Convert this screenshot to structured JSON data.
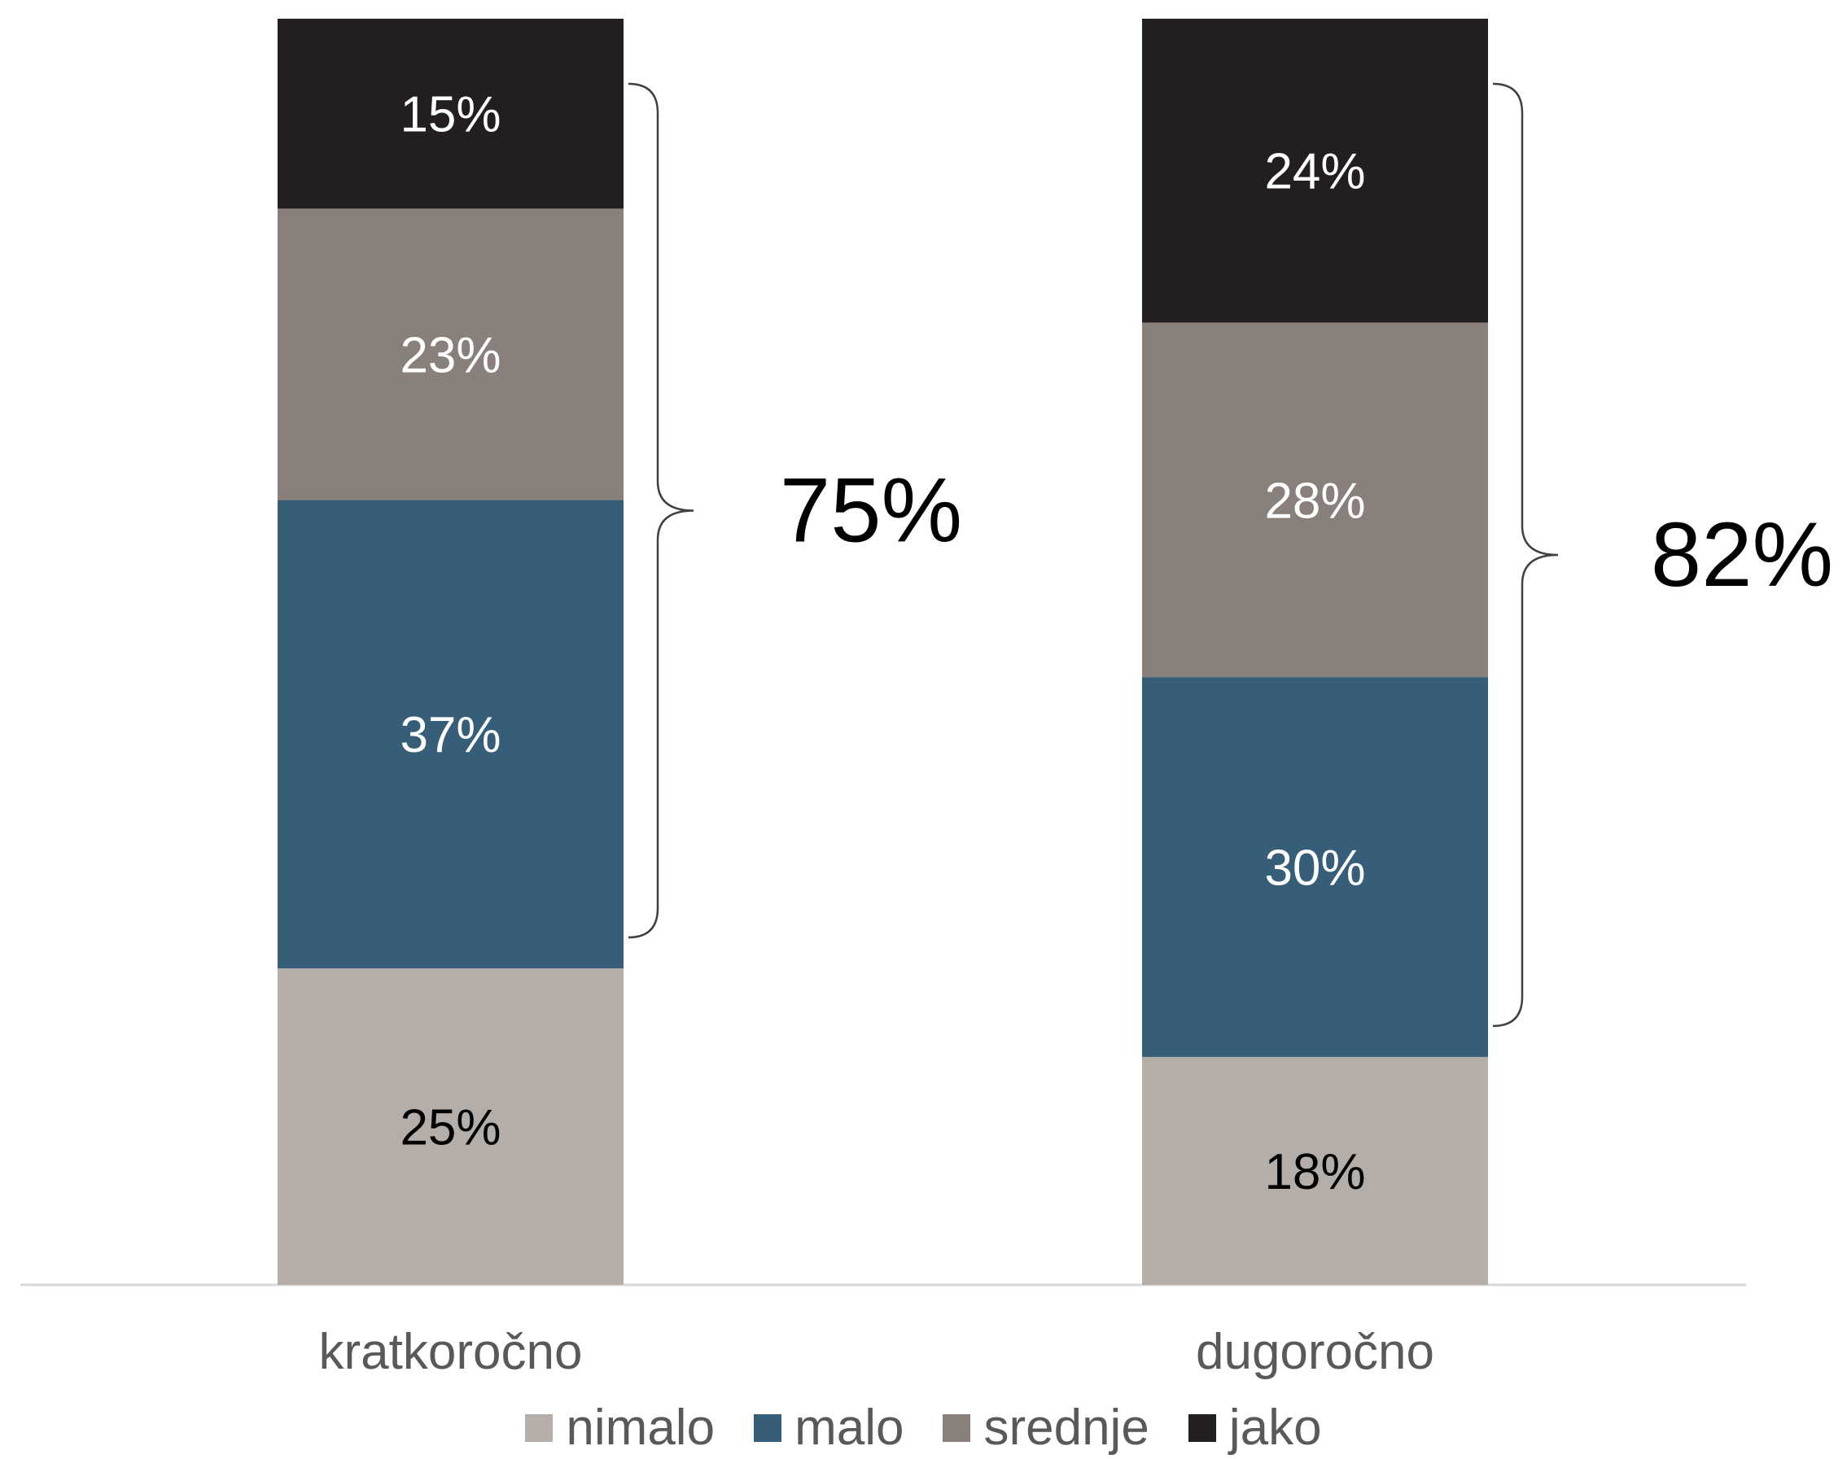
{
  "chart_data": {
    "type": "bar",
    "stacked": true,
    "categories": [
      "kratkoročno",
      "dugoročno"
    ],
    "series": [
      {
        "name": "nimalo",
        "values": [
          25,
          18
        ],
        "color": "#b4ada8",
        "label_color": "#000000"
      },
      {
        "name": "malo",
        "values": [
          37,
          30
        ],
        "color": "#365e78",
        "label_color": "#ffffff"
      },
      {
        "name": "srednje",
        "values": [
          23,
          28
        ],
        "color": "#89807b",
        "label_color": "#ffffff"
      },
      {
        "name": "jako",
        "values": [
          15,
          24
        ],
        "color": "#231f20",
        "label_color": "#ffffff"
      }
    ],
    "value_labels": [
      [
        "25%",
        "37%",
        "23%",
        "15%"
      ],
      [
        "18%",
        "30%",
        "28%",
        "24%"
      ]
    ],
    "brackets": [
      {
        "category": "kratkoročno",
        "label": "75%"
      },
      {
        "category": "dugoročno",
        "label": "82%"
      }
    ],
    "ylim": [
      0,
      100
    ],
    "grid": false,
    "legend_position": "bottom"
  }
}
